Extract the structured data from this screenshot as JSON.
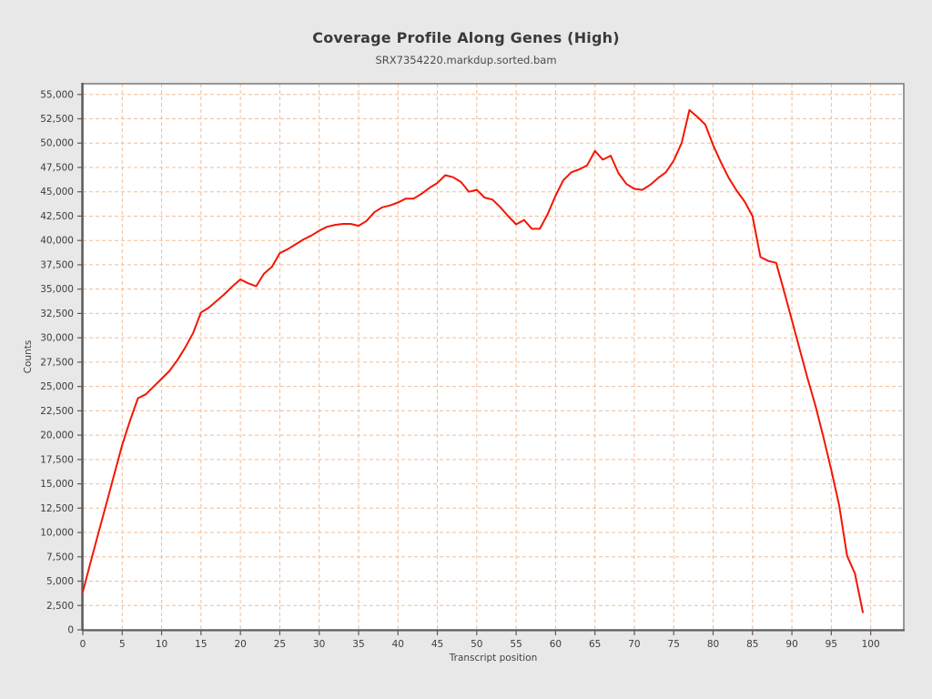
{
  "window": {
    "background_color": "#e8e8e8",
    "plot_background_color": "#ffffff"
  },
  "chart_data": {
    "type": "line",
    "title": "Coverage Profile Along Genes (High)",
    "subtitle": "SRX7354220.markdup.sorted.bam",
    "xlabel": "Transcript position",
    "ylabel": "Counts",
    "xlim": [
      0,
      104.2
    ],
    "ylim": [
      0,
      56100
    ],
    "grid": true,
    "grid_style": "dashed",
    "grid_color": "#f0bd96",
    "axis_color": "#5a5a5a",
    "border_color": "#6f6f6f",
    "tick_text_color": "#3c3c3c",
    "x_ticks": [
      0,
      5,
      10,
      15,
      20,
      25,
      30,
      35,
      40,
      45,
      50,
      55,
      60,
      65,
      70,
      75,
      80,
      85,
      90,
      95,
      100
    ],
    "y_ticks": [
      0,
      2500,
      5000,
      7500,
      10000,
      12500,
      15000,
      17500,
      20000,
      22500,
      25000,
      27500,
      30000,
      32500,
      35000,
      37500,
      40000,
      42500,
      45000,
      47500,
      50000,
      52500,
      55000
    ],
    "y_tick_format": "thousands-comma",
    "legend": "none",
    "series": [
      {
        "name": "SRX7354220.markdup.sorted.bam",
        "color": "#f41505",
        "line_width": 2,
        "x": [
          0,
          1,
          2,
          3,
          4,
          5,
          6,
          7,
          8,
          9,
          10,
          11,
          12,
          13,
          14,
          15,
          16,
          17,
          18,
          19,
          20,
          21,
          22,
          23,
          24,
          25,
          26,
          27,
          28,
          29,
          30,
          31,
          32,
          33,
          34,
          35,
          36,
          37,
          38,
          39,
          40,
          41,
          42,
          43,
          44,
          45,
          46,
          47,
          48,
          49,
          50,
          51,
          52,
          53,
          54,
          55,
          56,
          57,
          58,
          59,
          60,
          61,
          62,
          63,
          64,
          65,
          66,
          67,
          68,
          69,
          70,
          71,
          72,
          73,
          74,
          75,
          76,
          77,
          78,
          79,
          80,
          81,
          82,
          83,
          84,
          85,
          86,
          87,
          88,
          89,
          90,
          91,
          92,
          93,
          94,
          95,
          96,
          97,
          98,
          99
        ],
        "y": [
          3900,
          7000,
          10000,
          13000,
          16000,
          19000,
          21500,
          23800,
          24200,
          25000,
          25800,
          26600,
          27700,
          29000,
          30500,
          32600,
          33100,
          33800,
          34500,
          35300,
          36000,
          35600,
          35300,
          36600,
          37300,
          38700,
          39100,
          39600,
          40100,
          40500,
          41000,
          41400,
          41600,
          41700,
          41700,
          41500,
          42000,
          42900,
          43400,
          43600,
          43900,
          44300,
          44300,
          44800,
          45400,
          45900,
          46700,
          46500,
          46000,
          45000,
          45200,
          44400,
          44200,
          43400,
          42500,
          41650,
          42100,
          41200,
          41200,
          42700,
          44600,
          46200,
          47000,
          47300,
          47700,
          49200,
          48300,
          48700,
          46900,
          45800,
          45300,
          45200,
          45700,
          46400,
          47000,
          48200,
          50000,
          53400,
          52700,
          51900,
          49800,
          48000,
          46400,
          45100,
          44000,
          42500,
          38300,
          37900,
          37700,
          34800,
          31800,
          28800,
          25800,
          23000,
          19800,
          16400,
          12800,
          7600,
          5800,
          1800
        ]
      }
    ]
  }
}
